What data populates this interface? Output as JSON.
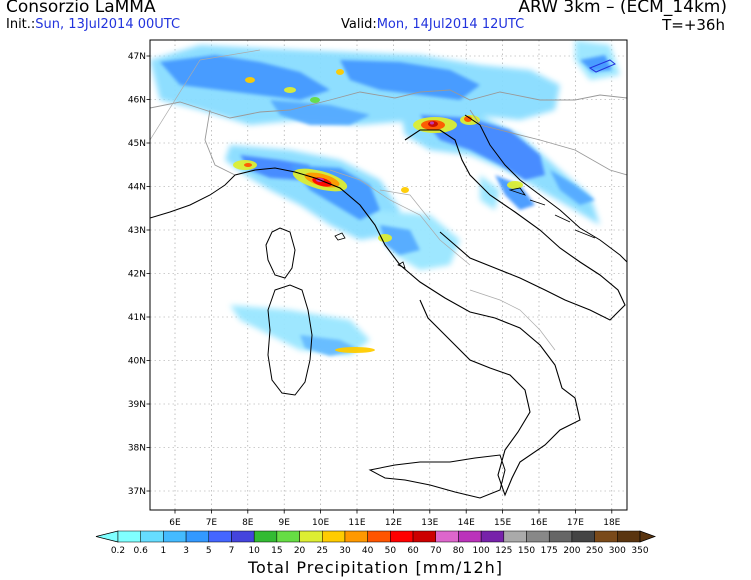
{
  "header": {
    "org": "Consorzio LaMMA",
    "model": "ARW 3km – (ECM_14km)",
    "init_label": "Init.:",
    "init_value": "Sun, 13Jul2014 00UTC",
    "valid_label": "Valid:",
    "valid_value": "Mon, 14Jul2014 12UTC",
    "forecast_step": "T=+36h"
  },
  "map": {
    "lat_labels": [
      "47N",
      "46N",
      "45N",
      "44N",
      "43N",
      "42N",
      "41N",
      "40N",
      "39N",
      "38N",
      "37N"
    ],
    "lon_labels": [
      "6E",
      "7E",
      "8E",
      "9E",
      "10E",
      "11E",
      "12E",
      "13E",
      "14E",
      "15E",
      "16E",
      "17E",
      "18E"
    ],
    "grid": true,
    "land_color": "#ffffff",
    "coast_color": "#000000",
    "border_color": "#999999"
  },
  "colorbar": {
    "title": "Total Precipitation [mm/12h]",
    "levels": [
      "0.2",
      "0.6",
      "1",
      "3",
      "5",
      "7",
      "10",
      "15",
      "20",
      "25",
      "30",
      "40",
      "50",
      "60",
      "70",
      "80",
      "100",
      "125",
      "150",
      "175",
      "200",
      "250",
      "300",
      "350"
    ],
    "colors": [
      "#80ffff",
      "#66ddff",
      "#44bbff",
      "#3399ff",
      "#4466ff",
      "#4444dd",
      "#33bb33",
      "#66dd44",
      "#ddee33",
      "#ffcc00",
      "#ff9900",
      "#ff5500",
      "#ff0000",
      "#cc0000",
      "#dd66cc",
      "#bb33bb",
      "#7722aa",
      "#aaaaaa",
      "#888888",
      "#666666",
      "#444444",
      "#7a4a1a",
      "#5a3510"
    ]
  }
}
